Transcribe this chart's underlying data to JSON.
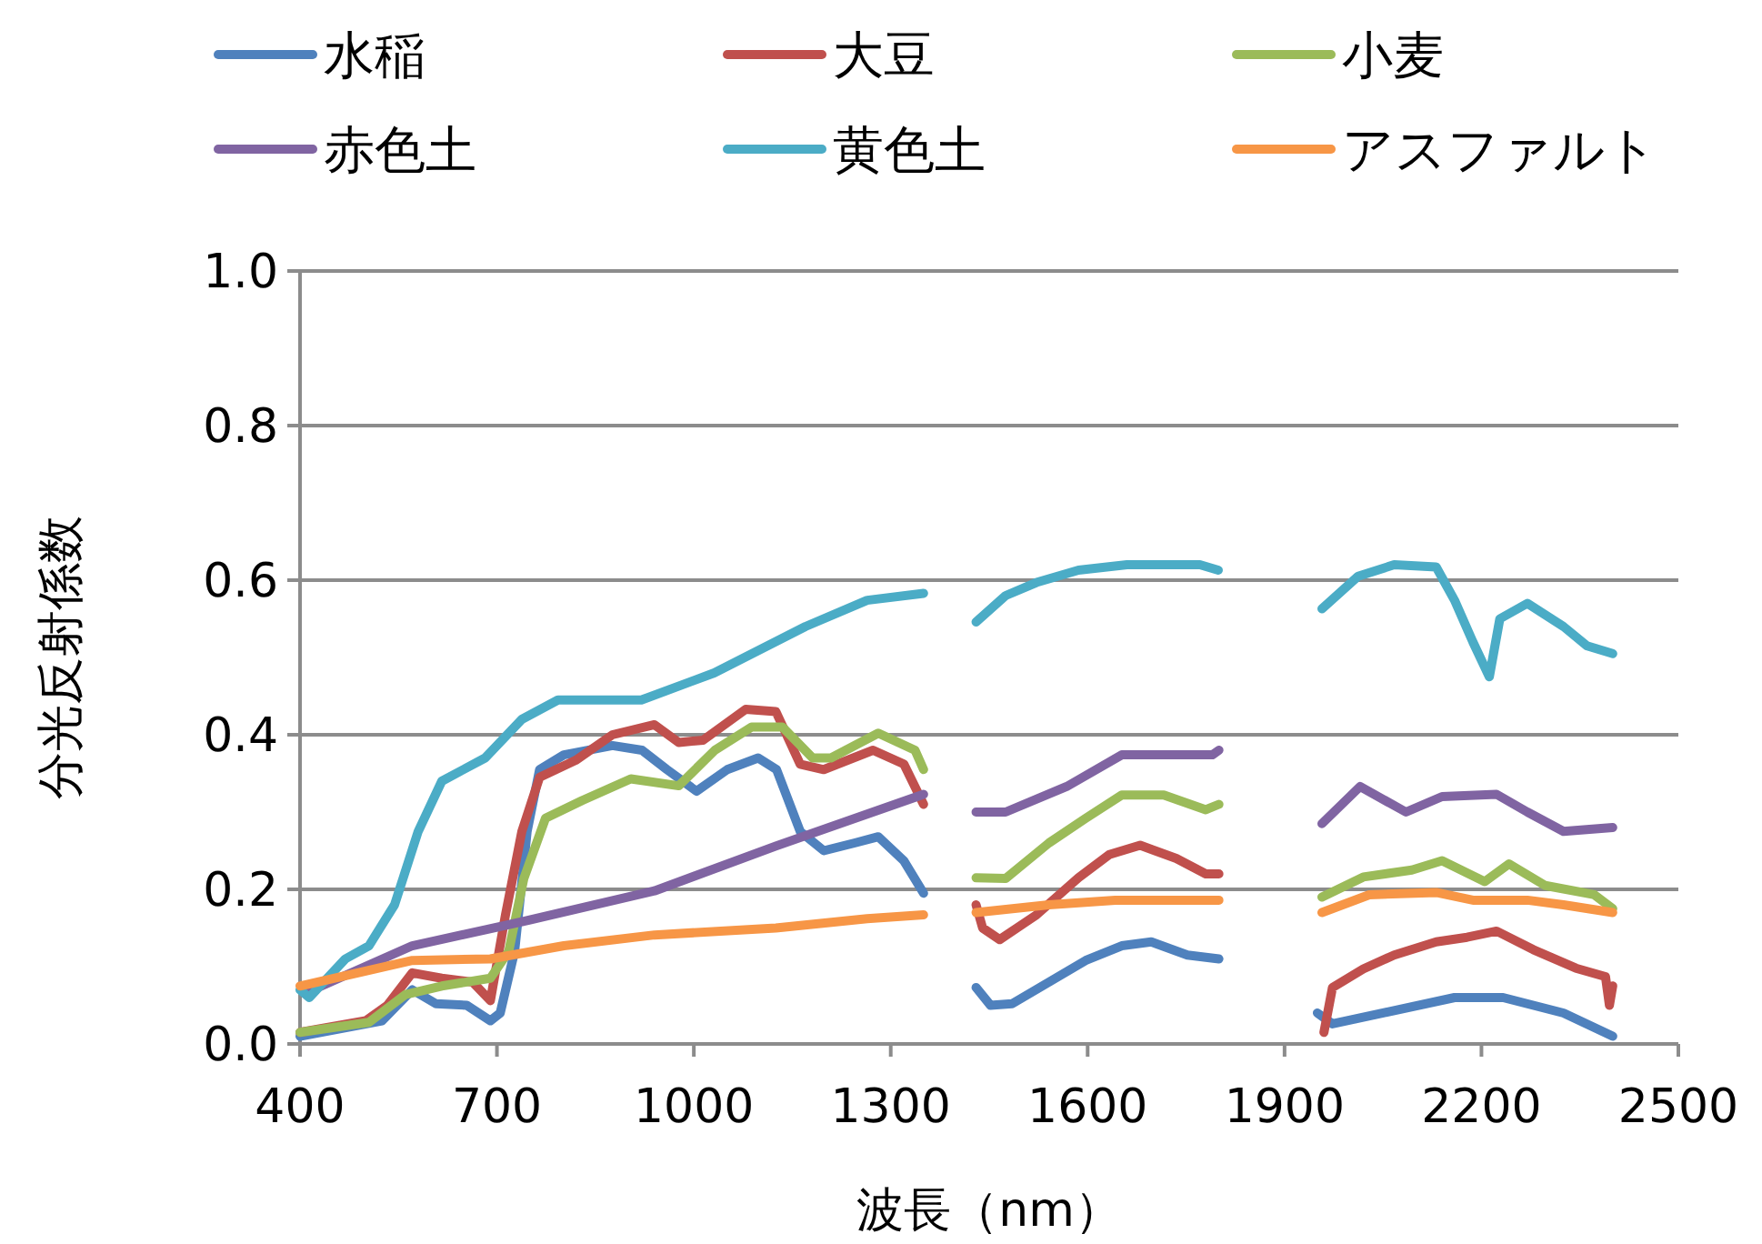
{
  "chart_data": {
    "type": "line",
    "xlabel": "波長（nm）",
    "ylabel": "分光反射係数",
    "xlim": [
      400,
      2500
    ],
    "xticks": [
      400,
      700,
      1000,
      1300,
      1600,
      1900,
      2200,
      2500
    ],
    "ylim": [
      0,
      1.0
    ],
    "yticks": [
      {
        "value": 0,
        "label": "0.0"
      },
      {
        "value": 0.2,
        "label": "0.2"
      },
      {
        "value": 0.4,
        "label": "0.4"
      },
      {
        "value": 0.6,
        "label": "0.6"
      },
      {
        "value": 0.8,
        "label": "0.8"
      },
      {
        "value": 1.0,
        "label": "1.0"
      }
    ],
    "grid": "y",
    "legend": "top",
    "marker": "none",
    "line_style": "solid",
    "series": [
      {
        "name": "水稲",
        "color": "#4f81bd",
        "x": [
          400,
          525,
          571,
          607,
          654,
          690,
          705,
          727,
          746,
          765,
          802,
          876,
          921,
          959,
          1004,
          1051,
          1098,
          1126,
          1162,
          1198,
          1245,
          1281,
          1320,
          1350,
          null,
          1430,
          1452,
          1485,
          1541,
          1597,
          1652,
          1697,
          1752,
          1800,
          null,
          1950,
          1973,
          2159,
          2233,
          2325,
          2400
        ],
        "values": [
          0.01,
          0.03,
          0.07,
          0.052,
          0.05,
          0.03,
          0.04,
          0.12,
          0.275,
          0.355,
          0.374,
          0.386,
          0.38,
          0.355,
          0.327,
          0.355,
          0.37,
          0.355,
          0.275,
          0.25,
          0.26,
          0.268,
          0.237,
          0.195,
          null,
          0.073,
          0.05,
          0.052,
          0.08,
          0.108,
          0.127,
          0.132,
          0.115,
          0.11,
          null,
          0.04,
          0.026,
          0.06,
          0.06,
          0.04,
          0.01
        ]
      },
      {
        "name": "大豆",
        "color": "#c0504d",
        "x": [
          400,
          500,
          533,
          571,
          616,
          663,
          690,
          713,
          738,
          765,
          820,
          876,
          940,
          977,
          1014,
          1079,
          1125,
          1162,
          1198,
          1273,
          1320,
          1350,
          null,
          1430,
          1440,
          1466,
          1522,
          1586,
          1633,
          1680,
          1735,
          1780,
          1800,
          null,
          1960,
          1973,
          2020,
          2067,
          2131,
          2178,
          2223,
          2279,
          2344,
          2389,
          2395,
          2400
        ],
        "values": [
          0.015,
          0.03,
          0.05,
          0.092,
          0.085,
          0.08,
          0.056,
          0.167,
          0.275,
          0.345,
          0.367,
          0.4,
          0.413,
          0.39,
          0.393,
          0.433,
          0.43,
          0.362,
          0.355,
          0.38,
          0.362,
          0.31,
          null,
          0.18,
          0.15,
          0.135,
          0.167,
          0.215,
          0.245,
          0.257,
          0.24,
          0.22,
          0.22,
          null,
          0.015,
          0.073,
          0.097,
          0.115,
          0.132,
          0.138,
          0.146,
          0.122,
          0.098,
          0.087,
          0.05,
          0.075
        ]
      },
      {
        "name": "小麦",
        "color": "#9bbb59",
        "x": [
          400,
          505,
          561,
          616,
          690,
          718,
          741,
          774,
          830,
          904,
          977,
          1032,
          1088,
          1135,
          1181,
          1209,
          1281,
          1337,
          1350,
          null,
          1430,
          1475,
          1541,
          1597,
          1652,
          1716,
          1780,
          1800,
          null,
          1957,
          2020,
          2094,
          2140,
          2205,
          2242,
          2297,
          2372,
          2400
        ],
        "values": [
          0.015,
          0.028,
          0.064,
          0.075,
          0.085,
          0.12,
          0.214,
          0.292,
          0.315,
          0.343,
          0.334,
          0.38,
          0.41,
          0.41,
          0.37,
          0.37,
          0.402,
          0.38,
          0.355,
          null,
          0.215,
          0.214,
          0.26,
          0.292,
          0.322,
          0.322,
          0.303,
          0.31,
          null,
          0.19,
          0.216,
          0.225,
          0.237,
          0.21,
          0.233,
          0.205,
          0.193,
          0.175
        ]
      },
      {
        "name": "赤色土",
        "color": "#8064a2",
        "x": [
          414,
          571,
          738,
          940,
          1125,
          1350,
          null,
          1430,
          1475,
          1568,
          1652,
          1790,
          1800,
          null,
          1957,
          2015,
          2085,
          2140,
          2223,
          2270,
          2325,
          2400
        ],
        "values": [
          0.068,
          0.127,
          0.158,
          0.198,
          0.256,
          0.323,
          null,
          0.3,
          0.3,
          0.333,
          0.374,
          0.374,
          0.38,
          null,
          0.285,
          0.333,
          0.3,
          0.32,
          0.323,
          0.3,
          0.275,
          0.28
        ]
      },
      {
        "name": "黄色土",
        "color": "#4bacc6",
        "x": [
          400,
          414,
          469,
          505,
          544,
          580,
          616,
          682,
          738,
          793,
          920,
          1031,
          1170,
          1264,
          1350,
          null,
          1430,
          1475,
          1522,
          1586,
          1660,
          1771,
          1799,
          null,
          1957,
          2012,
          2067,
          2131,
          2159,
          2187,
          2212,
          2228,
          2270,
          2325,
          2361,
          2400
        ],
        "values": [
          0.07,
          0.06,
          0.11,
          0.127,
          0.18,
          0.275,
          0.34,
          0.37,
          0.42,
          0.445,
          0.445,
          0.48,
          0.54,
          0.574,
          0.583,
          null,
          0.546,
          0.58,
          0.597,
          0.613,
          0.62,
          0.62,
          0.613,
          null,
          0.563,
          0.605,
          0.62,
          0.617,
          0.574,
          0.52,
          0.475,
          0.55,
          0.57,
          0.54,
          0.515,
          0.505
        ]
      },
      {
        "name": "アスファルト",
        "color": "#f79646",
        "x": [
          400,
          571,
          690,
          802,
          940,
          1125,
          1264,
          1350,
          null,
          1430,
          1541,
          1642,
          1800,
          null,
          1957,
          2029,
          2131,
          2187,
          2270,
          2325,
          2400
        ],
        "values": [
          0.075,
          0.108,
          0.11,
          0.127,
          0.141,
          0.15,
          0.162,
          0.167,
          null,
          0.17,
          0.18,
          0.186,
          0.186,
          null,
          0.17,
          0.193,
          0.196,
          0.186,
          0.186,
          0.18,
          0.17
        ]
      }
    ]
  }
}
